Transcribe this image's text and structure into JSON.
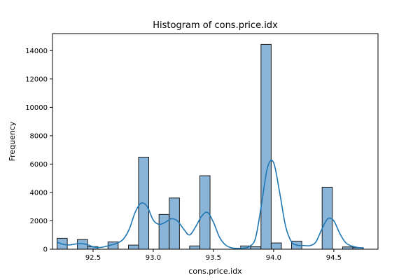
{
  "chart_data": {
    "type": "bar",
    "title": "Histogram of cons.price.idx",
    "xlabel": "cons.price.idx",
    "ylabel": "Frequency",
    "xlim": [
      92.163,
      94.867
    ],
    "ylim": [
      0,
      15200
    ],
    "x_ticks": [
      92.5,
      93.0,
      93.5,
      94.0,
      94.5
    ],
    "x_tick_labels": [
      "92.5",
      "93.0",
      "93.5",
      "94.0",
      "94.5"
    ],
    "y_ticks": [
      0,
      2000,
      4000,
      6000,
      8000,
      10000,
      12000,
      14000
    ],
    "y_tick_labels": [
      "0",
      "2000",
      "4000",
      "6000",
      "8000",
      "10000",
      "12000",
      "14000"
    ],
    "bin_width": 0.0847,
    "bins": [
      {
        "x0": 92.201,
        "value": 770
      },
      {
        "x0": 92.37,
        "value": 680
      },
      {
        "x0": 92.455,
        "value": 180
      },
      {
        "x0": 92.624,
        "value": 510
      },
      {
        "x0": 92.794,
        "value": 290
      },
      {
        "x0": 92.878,
        "value": 6490
      },
      {
        "x0": 93.048,
        "value": 2450
      },
      {
        "x0": 93.133,
        "value": 3610
      },
      {
        "x0": 93.302,
        "value": 230
      },
      {
        "x0": 93.387,
        "value": 5180
      },
      {
        "x0": 93.726,
        "value": 230
      },
      {
        "x0": 93.81,
        "value": 170
      },
      {
        "x0": 93.895,
        "value": 14440
      },
      {
        "x0": 93.98,
        "value": 440
      },
      {
        "x0": 94.149,
        "value": 570
      },
      {
        "x0": 94.403,
        "value": 4370
      },
      {
        "x0": 94.573,
        "value": 160
      },
      {
        "x0": 94.657,
        "value": 110
      }
    ],
    "kde": {
      "x": [
        92.2,
        92.25,
        92.3,
        92.35,
        92.4,
        92.45,
        92.5,
        92.55,
        92.6,
        92.65,
        92.7,
        92.75,
        92.8,
        92.85,
        92.9,
        92.95,
        93.0,
        93.05,
        93.1,
        93.15,
        93.2,
        93.25,
        93.3,
        93.35,
        93.4,
        93.45,
        93.5,
        93.55,
        93.6,
        93.65,
        93.7,
        93.75,
        93.8,
        93.85,
        93.9,
        93.95,
        94.0,
        94.05,
        94.1,
        94.15,
        94.2,
        94.25,
        94.3,
        94.35,
        94.4,
        94.45,
        94.5,
        94.55,
        94.6,
        94.65,
        94.7,
        94.75
      ],
      "y": [
        500,
        350,
        300,
        360,
        400,
        330,
        170,
        120,
        180,
        300,
        420,
        700,
        1400,
        2600,
        3250,
        3000,
        2050,
        1750,
        1900,
        2150,
        2000,
        1450,
        1000,
        1550,
        2300,
        2600,
        1900,
        850,
        300,
        100,
        60,
        80,
        200,
        800,
        3200,
        5800,
        6100,
        4000,
        1600,
        500,
        280,
        260,
        250,
        500,
        1400,
        2150,
        2000,
        1100,
        450,
        220,
        120,
        80
      ]
    },
    "colors": {
      "bar_fill": "#8ab5d9",
      "bar_edge": "#1a1a1a",
      "kde_line": "#1f77b4",
      "axes": "#000000"
    },
    "grid": false,
    "legend": "none"
  }
}
